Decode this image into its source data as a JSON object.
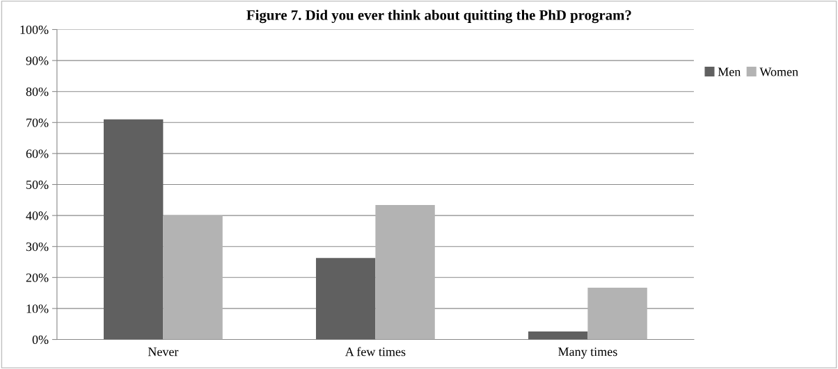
{
  "chart_data": {
    "type": "bar",
    "title": "Figure 7. Did you ever think about quitting the PhD program?",
    "categories": [
      "Never",
      "A few times",
      "Many times"
    ],
    "series": [
      {
        "name": "Men",
        "color": "#606060",
        "values": [
          71,
          26.3,
          2.6
        ]
      },
      {
        "name": "Women",
        "color": "#b3b3b3",
        "values": [
          40,
          43.4,
          16.7
        ]
      }
    ],
    "ylim": [
      0,
      100
    ],
    "yticks": [
      {
        "value": 0,
        "label": "0%"
      },
      {
        "value": 10,
        "label": "10%"
      },
      {
        "value": 20,
        "label": "20%"
      },
      {
        "value": 30,
        "label": "30%"
      },
      {
        "value": 40,
        "label": "40%"
      },
      {
        "value": 50,
        "label": "50%"
      },
      {
        "value": 60,
        "label": "60%"
      },
      {
        "value": 70,
        "label": "70%"
      },
      {
        "value": 80,
        "label": "80%"
      },
      {
        "value": 90,
        "label": "90%"
      },
      {
        "value": 100,
        "label": "100%"
      }
    ],
    "grid": "y",
    "legend": "right"
  }
}
